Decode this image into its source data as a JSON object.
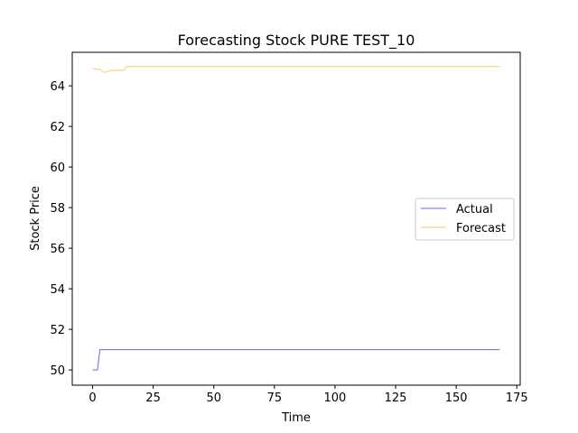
{
  "chart_data": {
    "type": "line",
    "title": "Forecasting Stock PURE TEST_10",
    "xlabel": "Time",
    "ylabel": "Stock Price",
    "xlim": [
      -8.4,
      176.4
    ],
    "ylim": [
      49.25,
      65.65
    ],
    "xticks": [
      0,
      25,
      50,
      75,
      100,
      125,
      150,
      175
    ],
    "yticks": [
      50,
      52,
      54,
      56,
      58,
      60,
      62,
      64
    ],
    "grid": false,
    "legend_position": "center-right",
    "series": [
      {
        "name": "Actual",
        "color": "#0000ff",
        "points": [
          [
            0,
            50.0
          ],
          [
            2,
            50.0
          ],
          [
            3,
            51.0
          ],
          [
            168,
            51.0
          ]
        ]
      },
      {
        "name": "Forecast",
        "color": "#ffa500",
        "points": [
          [
            0,
            64.85
          ],
          [
            3,
            64.8
          ],
          [
            5,
            64.65
          ],
          [
            7,
            64.75
          ],
          [
            13,
            64.78
          ],
          [
            14,
            64.95
          ],
          [
            168,
            64.95
          ]
        ]
      }
    ]
  }
}
